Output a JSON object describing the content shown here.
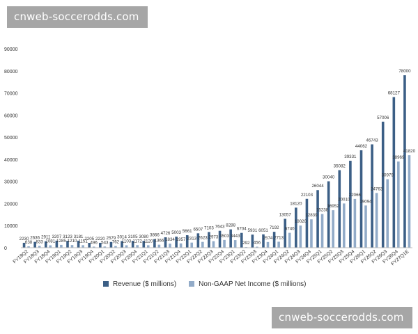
{
  "watermark": {
    "top": "cnweb-soccerodds.com",
    "bottom": "cnweb-soccerodds.com"
  },
  "colors": {
    "revenue": "#3c5f86",
    "income": "#92abc8",
    "axis": "#bbbbbb",
    "label": "#333333"
  },
  "chart_data": {
    "type": "bar",
    "title": "",
    "xlabel": "",
    "ylabel": "",
    "ylim": [
      0,
      90000
    ],
    "yticks": [
      0,
      10000,
      20000,
      30000,
      40000,
      50000,
      60000,
      70000,
      80000,
      90000
    ],
    "grid": false,
    "legend_position": "bottom",
    "categories": [
      "FY18Q2",
      "FY18Q3",
      "FY18Q4",
      "FY19Q1",
      "FY19Q2",
      "FY19Q3",
      "FY19Q4",
      "FY20Q1",
      "FY20Q2",
      "FY20Q3",
      "FY20Q4",
      "FY21Q1",
      "FY21Q2",
      "FY21Q3",
      "FY21Q4",
      "FY22Q1",
      "FY22Q2",
      "FY22Q3",
      "FY22Q4",
      "FY23Q1",
      "FY23Q2",
      "FY23Q3",
      "FY23Q4",
      "FY24Q1",
      "FY24Q2",
      "FY24Q3",
      "FY24Q4",
      "FY25Q1",
      "FY25Q2",
      "FY25Q3",
      "FY25Q4",
      "FY26Q1",
      "FY26Q2",
      "FY26Q3",
      "FY26Q4",
      "FY27Q1E"
    ],
    "series": [
      {
        "name": "Revenue ($ millions)",
        "values": [
          2230,
          2636,
          2911,
          3207,
          3123,
          3181,
          2205,
          2220,
          2579,
          3014,
          3105,
          3080,
          3866,
          4726,
          5003,
          5661,
          6507,
          7103,
          7643,
          8288,
          6704,
          5931,
          6051,
          7192,
          13057,
          18120,
          22103,
          26044,
          30040,
          35082,
          39331,
          44062,
          46743,
          57006,
          68127,
          78000
        ]
      },
      {
        "name": "Non-GAAP Net Income ($ millions)",
        "values": [
          638,
          833,
          1081,
          1285,
          1210,
          1151,
          496,
          543,
          762,
          1103,
          1172,
          1120,
          1366,
          1834,
          1957,
          2313,
          2623,
          2973,
          3503,
          3443,
          292,
          456,
          2574,
          2713,
          6740,
          10020,
          12839,
          15238,
          16952,
          20010,
          22066,
          19094,
          24763,
          30979,
          38969,
          41820
        ]
      }
    ]
  }
}
